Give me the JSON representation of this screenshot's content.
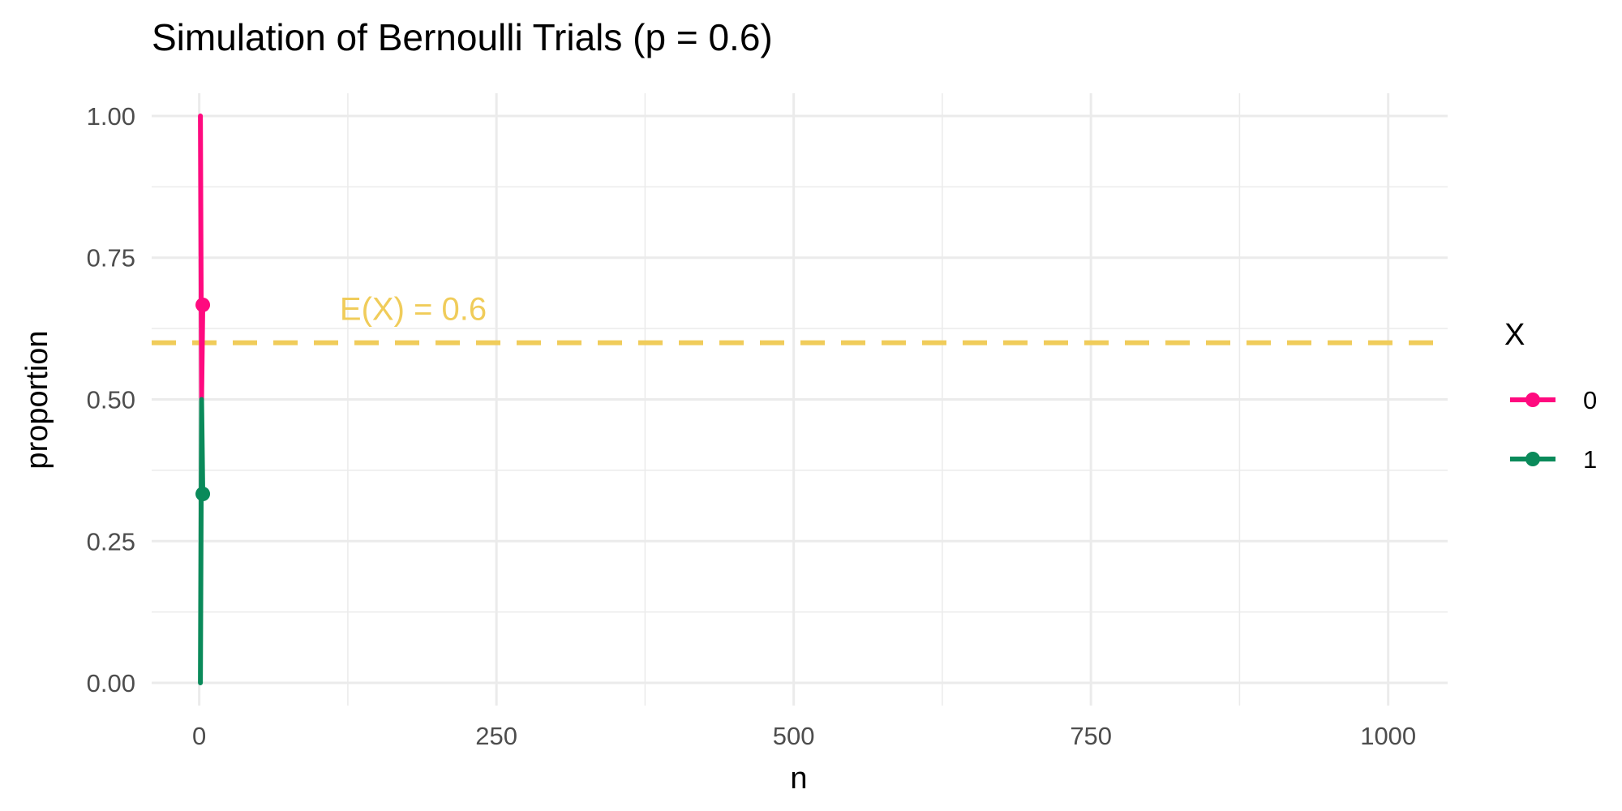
{
  "chart_data": {
    "type": "line",
    "title": "Simulation of Bernoulli Trials (p = 0.6)",
    "xlabel": "n",
    "ylabel": "proportion",
    "xlim": [
      -40,
      1050
    ],
    "ylim": [
      -0.04,
      1.04
    ],
    "x_ticks": [
      0,
      250,
      500,
      750,
      1000
    ],
    "x_tick_labels": [
      "0",
      "250",
      "500",
      "750",
      "1000"
    ],
    "y_ticks": [
      0,
      0.25,
      0.5,
      0.75,
      1
    ],
    "y_tick_labels": [
      "0.00",
      "0.25",
      "0.50",
      "0.75",
      "1.00"
    ],
    "grid": true,
    "legend": {
      "title": "X",
      "position": "right",
      "entries": [
        {
          "label": "0",
          "color": "#FF0A7F"
        },
        {
          "label": "1",
          "color": "#0A8A5A"
        }
      ]
    },
    "series": [
      {
        "name": "0",
        "color": "#FF0A7F",
        "x": [
          1,
          2,
          3
        ],
        "y": [
          1.0,
          0.5,
          0.6667
        ]
      },
      {
        "name": "1",
        "color": "#0A8A5A",
        "x": [
          1,
          2,
          3
        ],
        "y": [
          0.0,
          0.5,
          0.3333
        ]
      }
    ],
    "reference_line": {
      "y": 0.6,
      "label": "E(X) = 0.6",
      "label_x": 180,
      "color": "#F0CC5A",
      "style": "dashed"
    }
  }
}
